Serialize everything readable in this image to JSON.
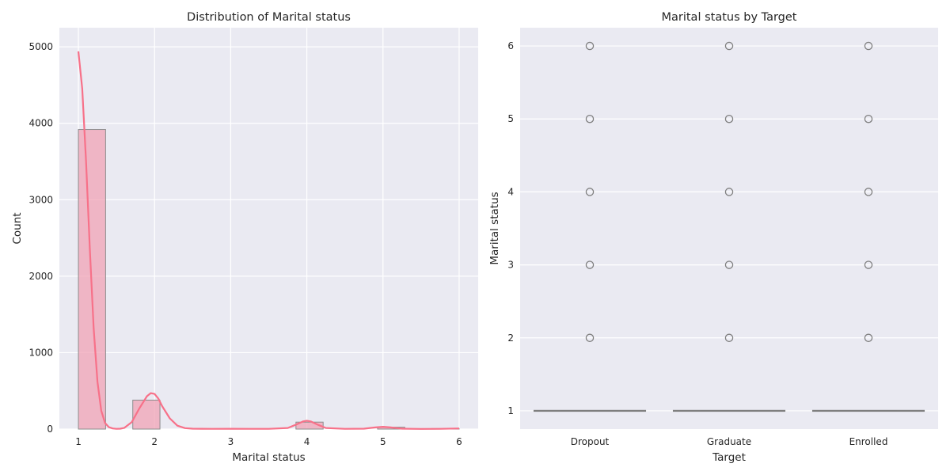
{
  "chart_data": [
    {
      "type": "bar",
      "title": "Distribution of Marital status",
      "xlabel": "Marital status",
      "ylabel": "Count",
      "xlim": [
        0.75,
        6.25
      ],
      "ylim": [
        0,
        5250
      ],
      "xticks": [
        1,
        2,
        3,
        4,
        5,
        6
      ],
      "yticks": [
        0,
        1000,
        2000,
        3000,
        4000,
        5000
      ],
      "grid": true,
      "bins": [
        {
          "x0": 1.0,
          "x1": 1.357,
          "value": 3919
        },
        {
          "x0": 1.714,
          "x1": 2.071,
          "value": 379
        },
        {
          "x0": 2.786,
          "x1": 3.143,
          "value": 4
        },
        {
          "x0": 3.857,
          "x1": 4.214,
          "value": 91
        },
        {
          "x0": 4.929,
          "x1": 5.286,
          "value": 25
        },
        {
          "x0": 5.643,
          "x1": 6.0,
          "value": 6
        }
      ],
      "kde": {
        "x": [
          1.0,
          1.05,
          1.1,
          1.15,
          1.2,
          1.25,
          1.3,
          1.35,
          1.4,
          1.45,
          1.5,
          1.55,
          1.6,
          1.7,
          1.8,
          1.9,
          1.95,
          2.0,
          2.05,
          2.1,
          2.2,
          2.3,
          2.4,
          2.5,
          2.75,
          3.0,
          3.25,
          3.5,
          3.75,
          3.85,
          3.95,
          4.0,
          4.05,
          4.15,
          4.25,
          4.5,
          4.75,
          4.9,
          5.0,
          5.1,
          5.25,
          5.5,
          5.75,
          6.0
        ],
        "y": [
          4940,
          4450,
          3500,
          2350,
          1320,
          620,
          240,
          80,
          25,
          8,
          3,
          5,
          15,
          90,
          270,
          430,
          470,
          460,
          400,
          300,
          140,
          45,
          12,
          5,
          3,
          4,
          3,
          3,
          15,
          55,
          100,
          110,
          100,
          55,
          15,
          3,
          5,
          22,
          30,
          22,
          5,
          2,
          3,
          8
        ]
      },
      "bar_color": "#f0a3b5",
      "line_color": "#f77189"
    },
    {
      "type": "box",
      "title": "Marital status by Target",
      "xlabel": "Target",
      "ylabel": "Marital status",
      "categories": [
        "Dropout",
        "Graduate",
        "Enrolled"
      ],
      "ylim": [
        0.75,
        6.25
      ],
      "yticks": [
        1,
        2,
        3,
        4,
        5,
        6
      ],
      "grid": true,
      "boxes": [
        {
          "category": "Dropout",
          "q1": 1,
          "median": 1,
          "q3": 1,
          "whisker_low": 1,
          "whisker_high": 1,
          "outliers": [
            2,
            3,
            4,
            5,
            6
          ]
        },
        {
          "category": "Graduate",
          "q1": 1,
          "median": 1,
          "q3": 1,
          "whisker_low": 1,
          "whisker_high": 1,
          "outliers": [
            2,
            3,
            4,
            5,
            6
          ]
        },
        {
          "category": "Enrolled",
          "q1": 1,
          "median": 1,
          "q3": 1,
          "whisker_low": 1,
          "whisker_high": 1,
          "outliers": [
            2,
            3,
            4,
            5,
            6
          ]
        }
      ],
      "box_color": "#7f7f7f"
    }
  ]
}
